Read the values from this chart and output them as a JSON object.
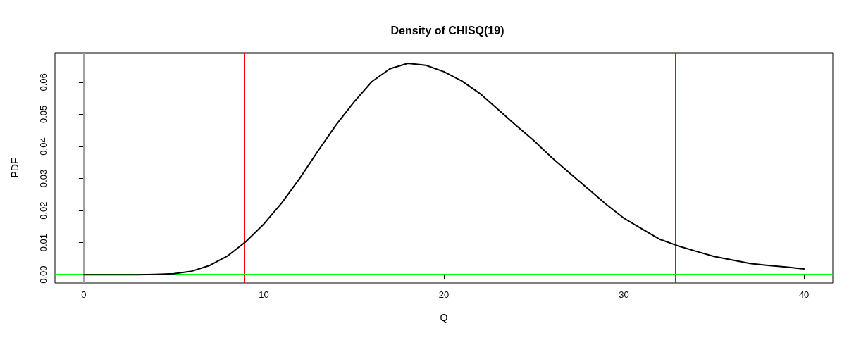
{
  "chart_data": {
    "type": "line",
    "title": "Density of CHISQ(19)",
    "xlabel": "Q",
    "ylabel": "PDF",
    "x": [
      0,
      1,
      2,
      3,
      4,
      5,
      6,
      7,
      8,
      9,
      10,
      11,
      12,
      13,
      14,
      15,
      16,
      17,
      18,
      19,
      20,
      21,
      22,
      23,
      24,
      25,
      26,
      27,
      28,
      29,
      30,
      31,
      32,
      33,
      34,
      35,
      36,
      37,
      38,
      39,
      40
    ],
    "series": [
      {
        "color": "#000000",
        "values": [
          0,
          0,
          0,
          0,
          0.0001,
          0.0003,
          0.0011,
          0.0029,
          0.0059,
          0.0103,
          0.0158,
          0.0224,
          0.0301,
          0.0385,
          0.0466,
          0.0538,
          0.0602,
          0.0642,
          0.0659,
          0.0653,
          0.0633,
          0.0604,
          0.0565,
          0.0516,
          0.0466,
          0.0418,
          0.0365,
          0.0316,
          0.0268,
          0.022,
          0.0176,
          0.0143,
          0.011,
          0.009,
          0.0073,
          0.0057,
          0.0046,
          0.0035,
          0.0029,
          0.0024,
          0.0018
        ]
      }
    ],
    "xlim": [
      -1.6,
      41.6
    ],
    "xticks": [
      0,
      10,
      20,
      30,
      40
    ],
    "ylim": [
      -0.0026,
      0.0692
    ],
    "yticks": [
      {
        "value": 0,
        "label": "0.00"
      },
      {
        "value": 0.01,
        "label": "0.01"
      },
      {
        "value": 0.02,
        "label": "0.02"
      },
      {
        "value": 0.03,
        "label": "0.03"
      },
      {
        "value": 0.04,
        "label": "0.04"
      },
      {
        "value": 0.05,
        "label": "0.05"
      },
      {
        "value": 0.06,
        "label": "0.06"
      }
    ],
    "ref_lines": [
      {
        "axis": "x",
        "value": 0,
        "color": "#a0a0a0"
      },
      {
        "axis": "x",
        "value": 8.91,
        "color": "#ff0000"
      },
      {
        "axis": "x",
        "value": 32.85,
        "color": "#ff0000"
      },
      {
        "axis": "y",
        "value": 0,
        "color": "#00ff00"
      }
    ],
    "grid": false,
    "marker": "none",
    "line_style": "solid"
  }
}
